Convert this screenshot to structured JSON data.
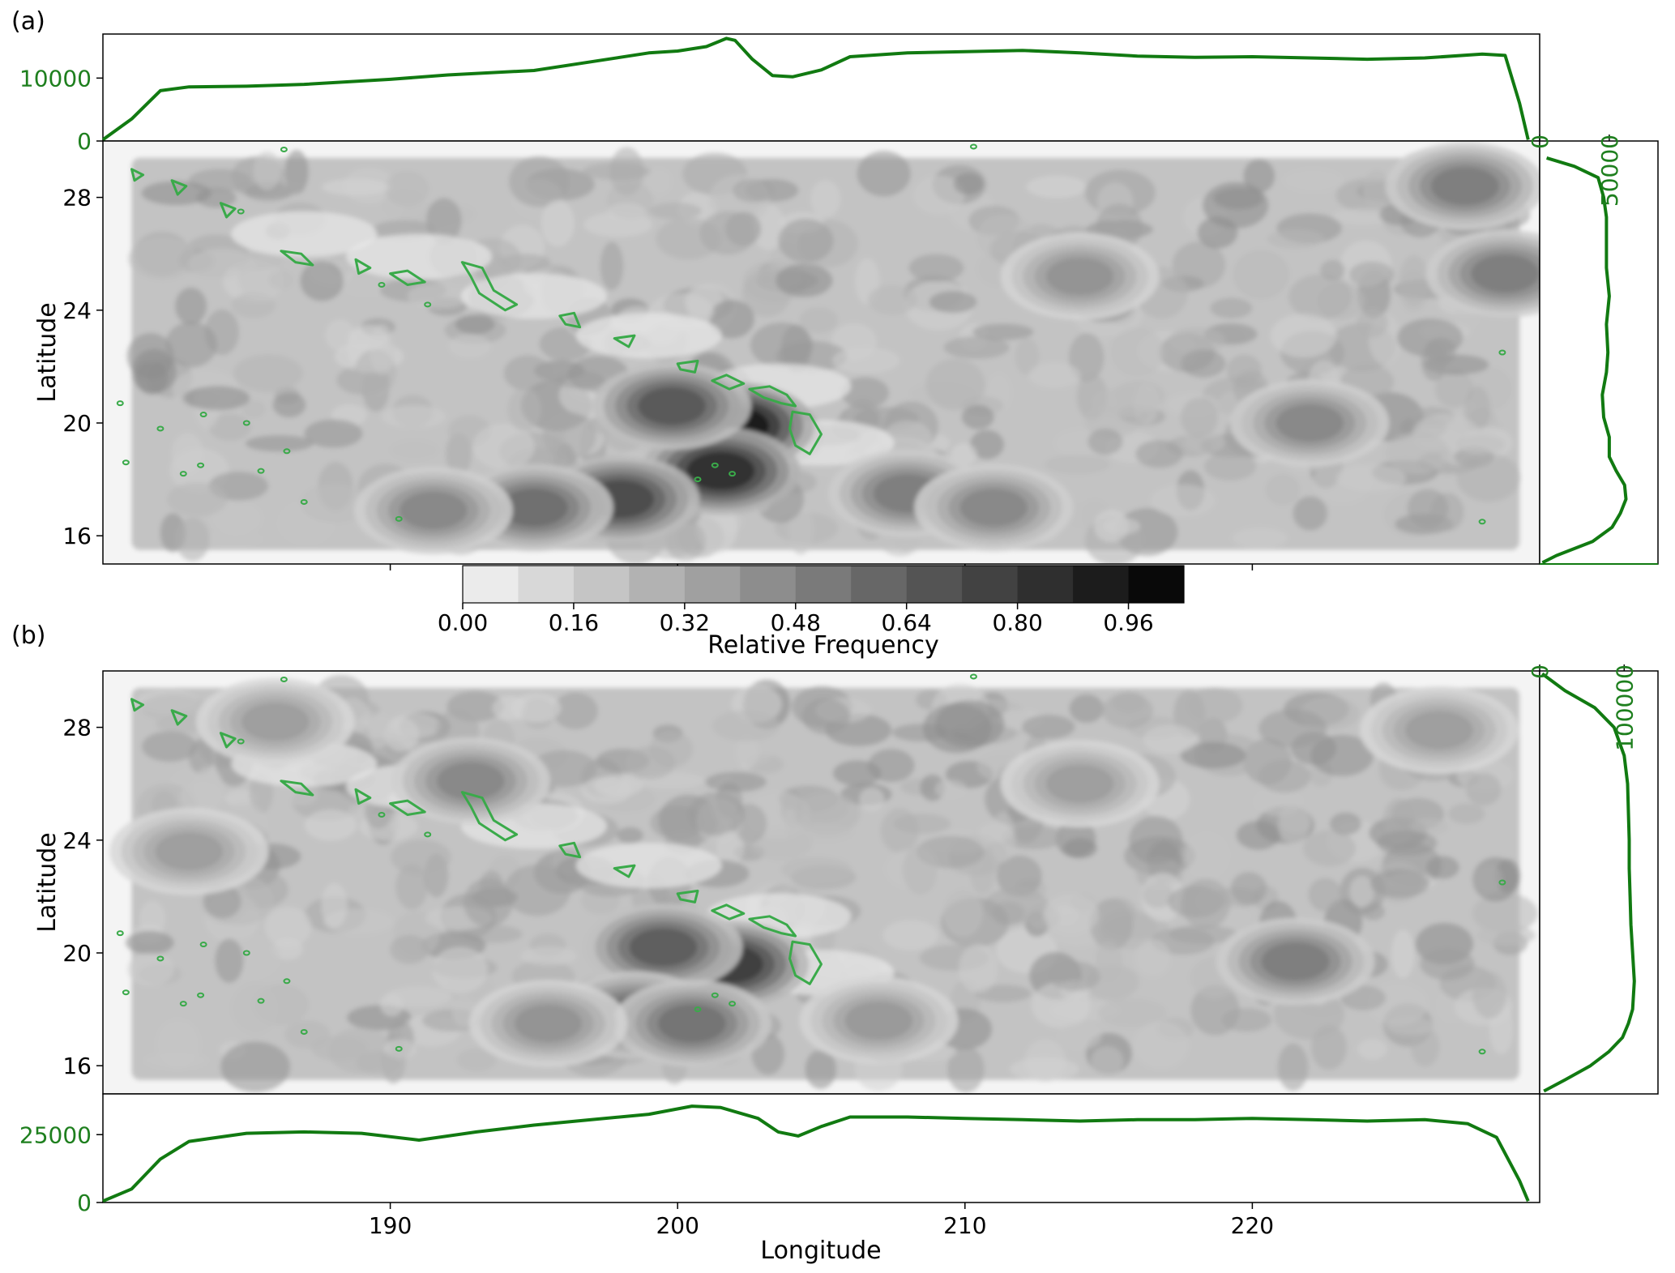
{
  "figure": {
    "panel_labels": [
      "(a)",
      "(b)"
    ],
    "xlabel": "Longitude",
    "ylabel": "Latitude",
    "colorbar_label": "Relative Frequency"
  },
  "colors": {
    "marginal": "#117a11",
    "coast": "#3aaa4a",
    "tick_green": "#1e7f1e"
  },
  "chart_data": [
    {
      "panel": "(a)",
      "type": "heatmap",
      "xlim": [
        180,
        230
      ],
      "ylim": [
        15,
        30
      ],
      "xticks": [
        190,
        200,
        210,
        220
      ],
      "yticks": [
        16,
        20,
        24,
        28
      ],
      "ytick_labels": [
        "16",
        "20",
        "24",
        "28"
      ],
      "colorbar": {
        "ticks": [
          0.0,
          0.16,
          0.32,
          0.48,
          0.64,
          0.8,
          0.96
        ],
        "tick_labels": [
          "0.00",
          "0.16",
          "0.32",
          "0.48",
          "0.64",
          "0.80",
          "0.96"
        ],
        "levels": 13,
        "max": 1.04
      },
      "hotspots": [
        {
          "lon": 202,
          "lat": 19.9,
          "value": 1.0
        },
        {
          "lon": 201.5,
          "lat": 18.3,
          "value": 0.9
        },
        {
          "lon": 199.8,
          "lat": 20.6,
          "value": 0.72
        },
        {
          "lon": 198,
          "lat": 17.3,
          "value": 0.78
        },
        {
          "lon": 195,
          "lat": 17.0,
          "value": 0.62
        },
        {
          "lon": 191.5,
          "lat": 16.9,
          "value": 0.5
        },
        {
          "lon": 208,
          "lat": 17.5,
          "value": 0.55
        },
        {
          "lon": 211,
          "lat": 17.0,
          "value": 0.5
        },
        {
          "lon": 227.4,
          "lat": 28.4,
          "value": 0.55
        },
        {
          "lon": 228.8,
          "lat": 25.3,
          "value": 0.55
        },
        {
          "lon": 222,
          "lat": 20.0,
          "value": 0.5
        },
        {
          "lon": 214,
          "lat": 25.2,
          "value": 0.45
        }
      ],
      "top_marginal": {
        "ytick_labels": [
          "0",
          "10000"
        ],
        "yticks": [
          0,
          10000
        ],
        "ylim": [
          0,
          17000
        ],
        "x": [
          180,
          181,
          182,
          183,
          185,
          187,
          190,
          192,
          195,
          197,
          199,
          200,
          201,
          201.7,
          202,
          202.6,
          203.3,
          204,
          205,
          206,
          208,
          210,
          212,
          214,
          216,
          218,
          220,
          222,
          224,
          226,
          228,
          228.8,
          229.3,
          229.6
        ],
        "y": [
          200,
          3500,
          8000,
          8600,
          8700,
          9000,
          9800,
          10500,
          11200,
          12600,
          14000,
          14300,
          15000,
          16300,
          16000,
          13000,
          10400,
          10200,
          11300,
          13400,
          14000,
          14200,
          14400,
          14000,
          13500,
          13300,
          13400,
          13200,
          13000,
          13200,
          13800,
          13600,
          6000,
          200
        ]
      },
      "right_marginal": {
        "xtick_labels": [
          "0",
          "50000"
        ],
        "xticks": [
          0,
          50000
        ],
        "xlim": [
          0,
          85000
        ],
        "lat": [
          15.05,
          15.3,
          15.8,
          16.3,
          16.8,
          17.3,
          17.8,
          18.3,
          18.8,
          19.5,
          20.2,
          21.0,
          21.8,
          22.5,
          23.5,
          24.5,
          25.5,
          26.5,
          27.3,
          28.0,
          28.7,
          29.1,
          29.4
        ],
        "count": [
          2000,
          12000,
          38000,
          52000,
          58000,
          62000,
          61000,
          55000,
          50000,
          50000,
          46000,
          45000,
          48000,
          49000,
          48000,
          50000,
          48000,
          48000,
          48000,
          46000,
          42000,
          25000,
          5000
        ]
      }
    },
    {
      "panel": "(b)",
      "type": "heatmap",
      "xlim": [
        180,
        230
      ],
      "ylim": [
        15,
        30
      ],
      "xticks": [
        190,
        200,
        210,
        220
      ],
      "xtick_labels": [
        "190",
        "200",
        "210",
        "220"
      ],
      "yticks": [
        16,
        20,
        24,
        28
      ],
      "ytick_labels": [
        "16",
        "20",
        "24",
        "28"
      ],
      "hotspots": [
        {
          "lon": 201.8,
          "lat": 19.6,
          "value": 0.85
        },
        {
          "lon": 199.5,
          "lat": 20.2,
          "value": 0.7
        },
        {
          "lon": 198.5,
          "lat": 17.8,
          "value": 0.62
        },
        {
          "lon": 200.5,
          "lat": 17.5,
          "value": 0.6
        },
        {
          "lon": 195.5,
          "lat": 17.5,
          "value": 0.45
        },
        {
          "lon": 207,
          "lat": 17.6,
          "value": 0.42
        },
        {
          "lon": 221.5,
          "lat": 19.7,
          "value": 0.55
        },
        {
          "lon": 192.8,
          "lat": 26.1,
          "value": 0.5
        },
        {
          "lon": 186,
          "lat": 28.2,
          "value": 0.4
        },
        {
          "lon": 214,
          "lat": 26.0,
          "value": 0.4
        },
        {
          "lon": 226.5,
          "lat": 27.9,
          "value": 0.4
        },
        {
          "lon": 183,
          "lat": 23.6,
          "value": 0.4
        }
      ],
      "bottom_marginal": {
        "ytick_labels": [
          "0",
          "25000"
        ],
        "yticks": [
          0,
          25000
        ],
        "ylim": [
          0,
          40000
        ],
        "x": [
          180,
          181,
          182,
          183,
          185,
          187,
          189,
          191,
          193,
          195,
          197,
          199,
          200.5,
          201.5,
          202.8,
          203.5,
          204.2,
          205,
          206,
          208,
          210,
          212,
          214,
          216,
          218,
          220,
          222,
          224,
          226,
          227.5,
          228.5,
          229.3,
          229.6
        ],
        "y": [
          500,
          5000,
          16000,
          22500,
          25500,
          26000,
          25500,
          23000,
          26000,
          28500,
          30500,
          32500,
          35500,
          35000,
          31000,
          26000,
          24500,
          28000,
          31500,
          31500,
          31000,
          30500,
          30000,
          30500,
          30500,
          31000,
          30500,
          30000,
          30500,
          29000,
          24000,
          8000,
          500
        ]
      },
      "right_marginal": {
        "xtick_labels": [
          "0",
          "100000"
        ],
        "xticks": [
          0,
          100000
        ],
        "xlim": [
          0,
          140000
        ],
        "lat": [
          15.1,
          15.5,
          16.0,
          16.5,
          17.0,
          17.5,
          18.0,
          19.0,
          20.0,
          21.0,
          22.0,
          23.0,
          24.0,
          25.0,
          26.0,
          27.0,
          28.0,
          28.7,
          29.3,
          29.9
        ],
        "count": [
          5000,
          30000,
          60000,
          82000,
          98000,
          105000,
          110000,
          112000,
          110000,
          108000,
          107000,
          106000,
          106000,
          105000,
          104000,
          100000,
          88000,
          65000,
          30000,
          3000
        ]
      }
    }
  ]
}
